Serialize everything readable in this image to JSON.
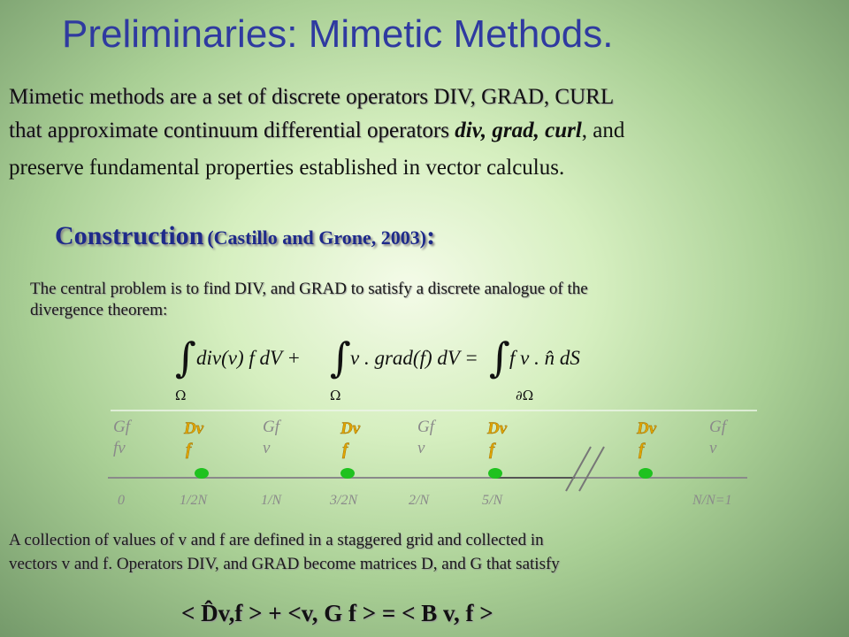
{
  "title": "Preliminaries: Mimetic Methods.",
  "intro": {
    "line1": "Mimetic methods are a set of discrete operators DIV, GRAD, CURL",
    "line2_start": "that approximate continuum differential operators ",
    "line2_ops": "div, grad, curl",
    "line2_end": ", and",
    "line3": "preserve fundamental properties established in vector calculus."
  },
  "construction": {
    "heading": "Construction",
    "citation": "(Castillo and Grone, 2003)",
    "colon": ":"
  },
  "problem": [
    "The central problem is to find DIV, and GRAD to satisfy a discrete analogue of the",
    "divergence theorem:"
  ],
  "theorem": {
    "integral": "∫",
    "terms": [
      "div(v) f dV +",
      "v . grad(f) dV =",
      "f v . n̂ dS"
    ],
    "domains": [
      "Ω",
      "Ω",
      "∂Ω"
    ]
  },
  "grid": {
    "top_labels": [
      [
        "Gf",
        "fv"
      ],
      [
        "Dv",
        "f"
      ],
      [
        "Gf",
        "v"
      ],
      [
        "Dv",
        "f"
      ],
      [
        "Gf",
        "v"
      ],
      [
        "Dv",
        "f"
      ],
      [
        "Dv",
        "f"
      ],
      [
        "Gf",
        "v"
      ]
    ],
    "bottom_labels": [
      "0",
      "1/2N",
      "1/N",
      "3/2N",
      "2/N",
      "5/N",
      "N/N=1"
    ]
  },
  "conclusion": [
    "A collection of values of v and f are defined in a staggered grid and collected in",
    "vectors v and f. Operators DIV, and GRAD become matrices D, and G that satisfy"
  ],
  "inner_product": "< D̂v,f > + <v, G f > = < B v, f >"
}
